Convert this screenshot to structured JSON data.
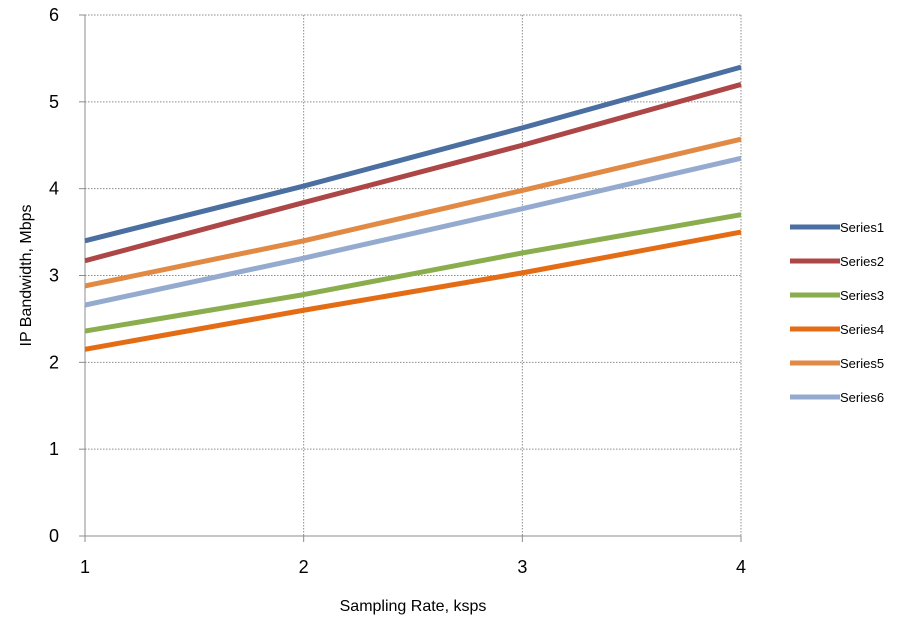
{
  "chart_data": {
    "type": "line",
    "xlabel": "Sampling Rate, ksps",
    "ylabel": "IP Bandwidth, Mbps",
    "x": [
      1,
      2,
      3,
      4
    ],
    "xticks": [
      "1",
      "2",
      "3",
      "4"
    ],
    "yticks": [
      "0",
      "1",
      "2",
      "3",
      "4",
      "5",
      "6"
    ],
    "xlim": [
      1,
      4
    ],
    "ylim": [
      0,
      6
    ],
    "grid": true,
    "legend_position": "right",
    "series": [
      {
        "name": "Series1",
        "color": "#4A6FA0",
        "values": [
          3.4,
          4.03,
          4.7,
          5.4
        ]
      },
      {
        "name": "Series2",
        "color": "#AD4646",
        "values": [
          3.17,
          3.84,
          4.5,
          5.2
        ]
      },
      {
        "name": "Series3",
        "color": "#8AAE4E",
        "values": [
          2.36,
          2.78,
          3.26,
          3.7
        ]
      },
      {
        "name": "Series4",
        "color": "#E46C15",
        "values": [
          2.15,
          2.6,
          3.03,
          3.5
        ]
      },
      {
        "name": "Series5",
        "color": "#E08A45",
        "values": [
          2.88,
          3.4,
          3.98,
          4.57
        ]
      },
      {
        "name": "Series6",
        "color": "#94ABCF",
        "values": [
          2.66,
          3.2,
          3.77,
          4.35
        ]
      }
    ]
  }
}
